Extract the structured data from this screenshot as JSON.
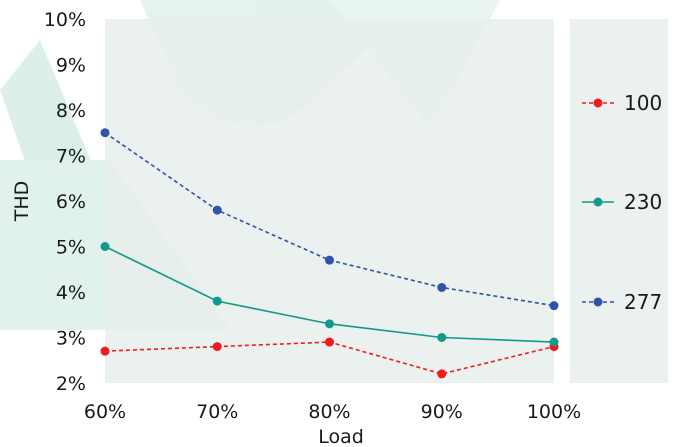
{
  "chart_data": {
    "type": "line",
    "title": "",
    "xlabel": "Load",
    "ylabel": "THD",
    "categories": [
      "60%",
      "70%",
      "80%",
      "90%",
      "100%"
    ],
    "ylim": [
      2,
      10
    ],
    "yticks": [
      2,
      3,
      4,
      5,
      6,
      7,
      8,
      9,
      10
    ],
    "ytick_labels": [
      "2%",
      "3%",
      "4%",
      "5%",
      "6%",
      "7%",
      "8%",
      "9%",
      "10%"
    ],
    "grid": false,
    "legend_position": "right",
    "plot_background": "#e8efeb",
    "series": [
      {
        "name": "100",
        "values": [
          2.7,
          2.8,
          2.9,
          2.2,
          2.8
        ],
        "color": "#ee1c1c",
        "dashed": true
      },
      {
        "name": "230",
        "values": [
          5.0,
          3.8,
          3.3,
          3.0,
          2.9
        ],
        "color": "#12998a",
        "dashed": false
      },
      {
        "name": "277",
        "values": [
          7.5,
          5.8,
          4.7,
          4.1,
          3.7
        ],
        "color": "#3153a8",
        "dashed": true
      }
    ]
  }
}
